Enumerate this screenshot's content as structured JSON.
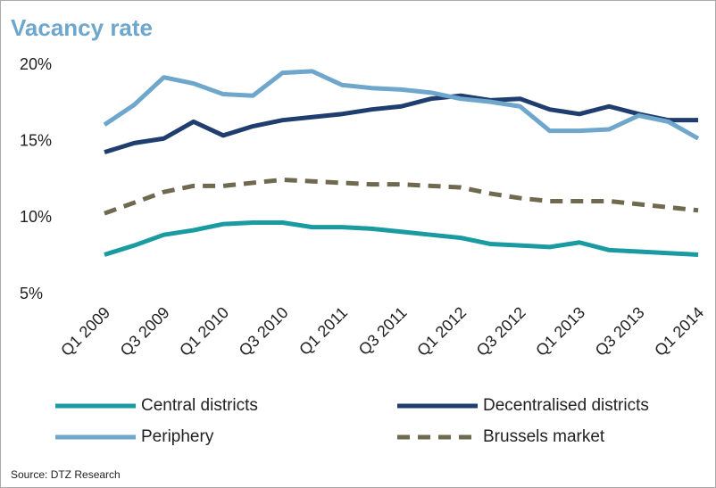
{
  "chart_data": {
    "type": "line",
    "title": "Vacancy rate",
    "source": "Source: DTZ Research",
    "categories": [
      "Q1 2009",
      null,
      "Q3 2009",
      null,
      "Q1 2010",
      null,
      "Q3 2010",
      null,
      "Q1 2011",
      null,
      "Q3 2011",
      null,
      "Q1 2012",
      null,
      "Q3 2012",
      null,
      "Q1 2013",
      null,
      "Q3 2013",
      null,
      "Q1 2014"
    ],
    "ylim": [
      5,
      20
    ],
    "yticks": [
      {
        "value": 5,
        "label": "5%"
      },
      {
        "value": 10,
        "label": "10%"
      },
      {
        "value": 15,
        "label": "15%"
      },
      {
        "value": 20,
        "label": "20%"
      }
    ],
    "grid": false,
    "legend": "bottom",
    "series": [
      {
        "name": "Central districts",
        "color": "#1a9ba1",
        "style": "solid",
        "values": [
          7.6,
          8.2,
          8.9,
          9.2,
          9.6,
          9.7,
          9.7,
          9.4,
          9.4,
          9.3,
          9.1,
          8.9,
          8.7,
          8.3,
          8.2,
          8.1,
          8.4,
          7.9,
          7.8,
          7.7,
          7.6
        ]
      },
      {
        "name": "Decentralised districts",
        "color": "#1f3d6e",
        "style": "solid",
        "values": [
          14.3,
          14.9,
          15.2,
          16.3,
          15.4,
          16.0,
          16.4,
          16.6,
          16.8,
          17.1,
          17.3,
          17.8,
          18.0,
          17.7,
          17.8,
          17.1,
          16.8,
          17.3,
          16.8,
          16.4,
          16.4
        ]
      },
      {
        "name": "Periphery",
        "color": "#6ea6cc",
        "style": "solid",
        "values": [
          16.1,
          17.4,
          19.2,
          18.8,
          18.1,
          18.0,
          19.5,
          19.6,
          18.7,
          18.5,
          18.4,
          18.2,
          17.8,
          17.6,
          17.3,
          15.7,
          15.7,
          15.8,
          16.7,
          16.3,
          15.2
        ]
      },
      {
        "name": "Brussels market",
        "color": "#6f6a4f",
        "style": "dashed",
        "values": [
          10.3,
          11.0,
          11.7,
          12.1,
          12.1,
          12.3,
          12.5,
          12.4,
          12.3,
          12.2,
          12.2,
          12.1,
          12.0,
          11.6,
          11.3,
          11.1,
          11.1,
          11.1,
          10.9,
          10.7,
          10.5
        ]
      }
    ]
  }
}
